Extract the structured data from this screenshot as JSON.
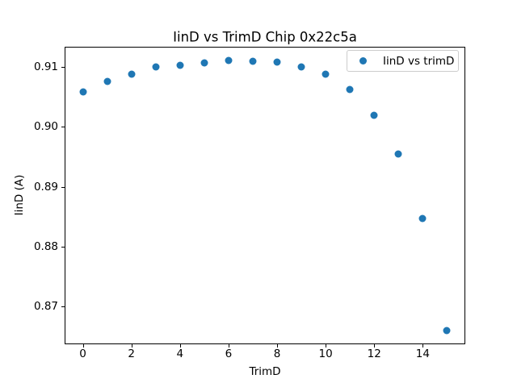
{
  "chart_data": {
    "type": "scatter",
    "title": "IinD vs TrimD Chip 0x22c5a",
    "xlabel": "TrimD",
    "ylabel": "IinD (A)",
    "legend_label": "IinD vs trimD",
    "legend_position": "upper right",
    "marker_color": "#1f77b4",
    "grid": false,
    "x": [
      0,
      1,
      2,
      3,
      4,
      5,
      6,
      7,
      8,
      9,
      10,
      11,
      12,
      13,
      14,
      15
    ],
    "y": [
      0.9058,
      0.9076,
      0.9088,
      0.91,
      0.9103,
      0.9107,
      0.9111,
      0.911,
      0.9109,
      0.9101,
      0.9088,
      0.9063,
      0.902,
      0.8955,
      0.8847,
      0.866
    ],
    "xlim": [
      -0.75,
      15.75
    ],
    "ylim": [
      0.8637,
      0.9134
    ],
    "xticks": {
      "values": [
        0,
        2,
        4,
        6,
        8,
        10,
        12,
        14
      ],
      "labels": [
        "0",
        "2",
        "4",
        "6",
        "8",
        "10",
        "12",
        "14"
      ]
    },
    "yticks": {
      "values": [
        0.87,
        0.88,
        0.89,
        0.9,
        0.91
      ],
      "labels": [
        "0.87",
        "0.88",
        "0.89",
        "0.90",
        "0.91"
      ]
    }
  }
}
